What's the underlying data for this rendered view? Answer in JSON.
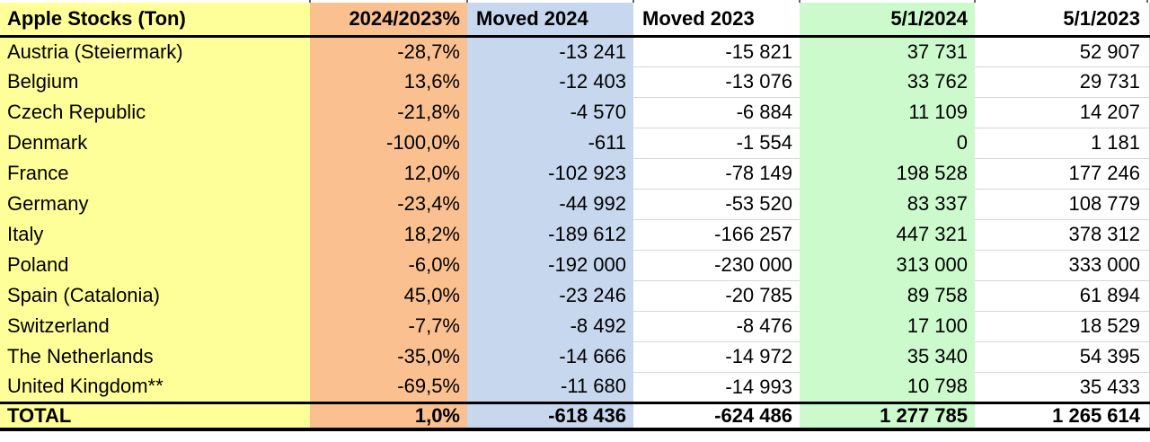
{
  "table": {
    "title_cell": "Apple Stocks (Ton)",
    "columns": [
      {
        "key": "country",
        "label": "Apple Stocks (Ton)",
        "align": "left",
        "bg": "#FFFF99"
      },
      {
        "key": "pct_change",
        "label": "2024/2023%",
        "align": "right",
        "bg": "#FAC090"
      },
      {
        "key": "moved_2024",
        "label": "Moved 2024",
        "align": "left",
        "bg": "#C6D7EE"
      },
      {
        "key": "moved_2023",
        "label": "Moved 2023",
        "align": "left",
        "bg": "#FFFFFF"
      },
      {
        "key": "stock_2024",
        "label": "5/1/2024",
        "align": "right",
        "bg": "#CCFACC"
      },
      {
        "key": "stock_2023",
        "label": "5/1/2023",
        "align": "right",
        "bg": "#FFFFFF"
      }
    ],
    "rows": [
      [
        "Austria (Steiermark)",
        "-28,7%",
        "-13 241",
        "-15 821",
        "37 731",
        "52 907"
      ],
      [
        "Belgium",
        "13,6%",
        "-12 403",
        "-13 076",
        "33 762",
        "29 731"
      ],
      [
        "Czech Republic",
        "-21,8%",
        "-4 570",
        "-6 884",
        "11 109",
        "14 207"
      ],
      [
        "Denmark",
        "-100,0%",
        "-611",
        "-1 554",
        "0",
        "1 181"
      ],
      [
        "France",
        "12,0%",
        "-102 923",
        "-78 149",
        "198 528",
        "177 246"
      ],
      [
        "Germany",
        "-23,4%",
        "-44 992",
        "-53 520",
        "83 337",
        "108 779"
      ],
      [
        "Italy",
        "18,2%",
        "-189 612",
        "-166 257",
        "447 321",
        "378 312"
      ],
      [
        "Poland",
        "-6,0%",
        "-192 000",
        "-230 000",
        "313 000",
        "333 000"
      ],
      [
        "Spain (Catalonia)",
        "45,0%",
        "-23 246",
        "-20 785",
        "89 758",
        "61 894"
      ],
      [
        "Switzerland",
        "-7,7%",
        "-8 492",
        "-8 476",
        "17 100",
        "18 529"
      ],
      [
        "The Netherlands",
        "-35,0%",
        "-14 666",
        "-14 972",
        "35 340",
        "54 395"
      ],
      [
        "United Kingdom**",
        "-69,5%",
        "-11 680",
        "-14 993",
        "10 798",
        "35 433"
      ]
    ],
    "total_row": [
      "TOTAL",
      "1,0%",
      "-618 436",
      "-624 486",
      "1 277 785",
      "1 265 614"
    ]
  },
  "colors": {
    "col_country_bg": "#FFFF99",
    "col_percent_bg": "#FAC090",
    "col_moved2024_bg": "#C6D7EE",
    "col_stock2024_bg": "#CCFACC",
    "white_col_bg": "#FFFFFF",
    "gridline": "#D6D6D6",
    "heavy_border": "#000000",
    "text": "#000000"
  }
}
